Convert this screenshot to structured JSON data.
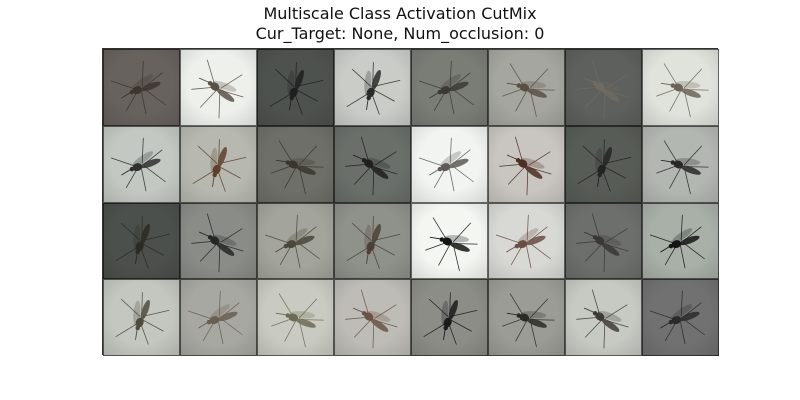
{
  "figure": {
    "title_lines": [
      "Multiscale Class Activation CutMix",
      "Cur_Target: None, Num_occlusion: 0"
    ]
  },
  "grid": {
    "rows": 4,
    "cols": 8,
    "tiles": [
      {
        "bg": "#67625e",
        "body": "#3d3530",
        "pose": "left"
      },
      {
        "bg": "#eef0ec",
        "body": "#5a5048",
        "pose": "diag"
      },
      {
        "bg": "#4d524f",
        "body": "#1e1e1e",
        "pose": "up"
      },
      {
        "bg": "#c9ccc7",
        "body": "#2a2a2a",
        "pose": "up"
      },
      {
        "bg": "#7a7c76",
        "body": "#3b3a32",
        "pose": "left"
      },
      {
        "bg": "#a4a69f",
        "body": "#5b4f45",
        "pose": "right"
      },
      {
        "bg": "#5e605d",
        "body": "#6f6b63",
        "pose": "diag"
      },
      {
        "bg": "#dfe3dc",
        "body": "#6e6358",
        "pose": "right"
      },
      {
        "bg": "#c3c8c2",
        "body": "#2f2f2f",
        "pose": "left"
      },
      {
        "bg": "#b7b9b1",
        "body": "#5e3f2e",
        "pose": "up"
      },
      {
        "bg": "#6e6f68",
        "body": "#3a362f",
        "pose": "right"
      },
      {
        "bg": "#6a6f6a",
        "body": "#1f1f1f",
        "pose": "diag"
      },
      {
        "bg": "#f1f4f1",
        "body": "#5d5a56",
        "pose": "left"
      },
      {
        "bg": "#c9c6c1",
        "body": "#4b2e25",
        "pose": "diag"
      },
      {
        "bg": "#585c56",
        "body": "#232323",
        "pose": "up"
      },
      {
        "bg": "#b3b7b1",
        "body": "#282828",
        "pose": "right"
      },
      {
        "bg": "#4c504c",
        "body": "#2c2a22",
        "pose": "up"
      },
      {
        "bg": "#8a8c87",
        "body": "#262626",
        "pose": "diag"
      },
      {
        "bg": "#a3a49b",
        "body": "#4a473a",
        "pose": "left"
      },
      {
        "bg": "#8f918b",
        "body": "#4b3f36",
        "pose": "up"
      },
      {
        "bg": "#f4f6f2",
        "body": "#141414",
        "pose": "right"
      },
      {
        "bg": "#d8d8d4",
        "body": "#6a4e44",
        "pose": "left"
      },
      {
        "bg": "#6d6f6c",
        "body": "#3a3734",
        "pose": "diag"
      },
      {
        "bg": "#a8b0a8",
        "body": "#151515",
        "pose": "left"
      },
      {
        "bg": "#c3c7c0",
        "body": "#4f4a40",
        "pose": "up"
      },
      {
        "bg": "#a8a8a3",
        "body": "#6a5e50",
        "pose": "left"
      },
      {
        "bg": "#c9cbc2",
        "body": "#6c6b55",
        "pose": "right"
      },
      {
        "bg": "#bdbcb6",
        "body": "#6a5346",
        "pose": "diag"
      },
      {
        "bg": "#8b8d86",
        "body": "#1b1b1b",
        "pose": "up"
      },
      {
        "bg": "#9a9c95",
        "body": "#2b2a26",
        "pose": "right"
      },
      {
        "bg": "#c7c9c3",
        "body": "#3f3c38",
        "pose": "diag"
      },
      {
        "bg": "#707170",
        "body": "#2a2a2a",
        "pose": "left"
      }
    ]
  }
}
